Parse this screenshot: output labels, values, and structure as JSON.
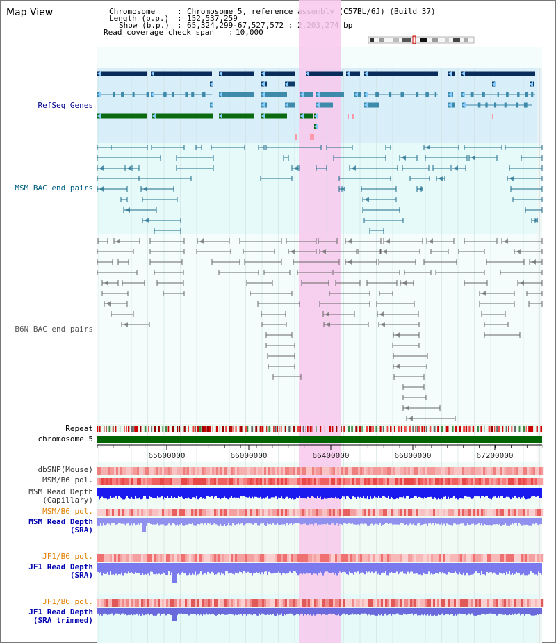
{
  "title": "Map View",
  "info": {
    "chromosome_label": "Chromosome",
    "chromosome_value": "Chromosome 5, reference assembly (C57BL/6J) (Build 37)",
    "length_label": "Length (b.p.)",
    "length_value": "152,537,259",
    "show_label": "Show (b.p.)",
    "show_value": "65,324,299-67,527,572 : 2,203,274 bp",
    "coverage_label": "Read coverage check span",
    "coverage_value": "10,000"
  },
  "tracks": {
    "refseq": "RefSeq Genes",
    "msm_bac": "MSM BAC end pairs",
    "b6n_bac": "B6N BAC end pairs",
    "repeat": "Repeat",
    "chromosome": "chromosome 5",
    "dbsnp": "dbSNP(Mouse)",
    "msm_b6_pol_1": "MSM/B6 pol.",
    "msm_read_depth_cap": "MSM Read Depth\n(Capillary)",
    "msm_b6_pol_2": "MSM/B6 pol.",
    "msm_read_depth_sra": "MSM Read Depth\n(SRA)",
    "jf1_b6_pol_1": "JF1/B6 pol.",
    "jf1_read_depth_sra": "JF1 Read Depth\n(SRA)",
    "jf1_b6_pol_2": "JF1/B6 pol.",
    "jf1_read_depth_trim": "JF1 Read Depth\n(SRA trimmed)"
  },
  "axis": {
    "ticks": [
      "65600000",
      "66000000",
      "66400000",
      "66800000",
      "67200000"
    ]
  },
  "colors": {
    "refseq_label": "#00008b",
    "msm_bac_label": "#006080",
    "b6n_bac_label": "#555555",
    "pol_label": "#e08000",
    "depth_label": "#0000b0",
    "highlight": "#f8c8ec",
    "chromosome_bar": "#006400"
  }
}
